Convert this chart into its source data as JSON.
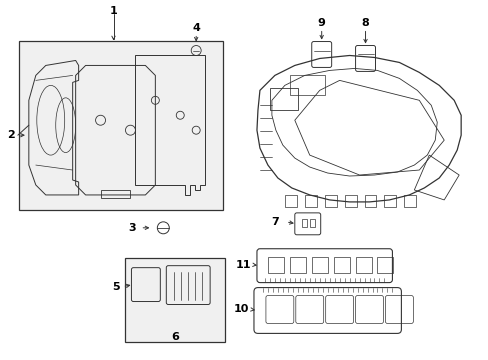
{
  "bg_color": "#ffffff",
  "line_color": "#333333",
  "label_color": "#000000",
  "fig_w": 4.89,
  "fig_h": 3.6,
  "dpi": 100
}
